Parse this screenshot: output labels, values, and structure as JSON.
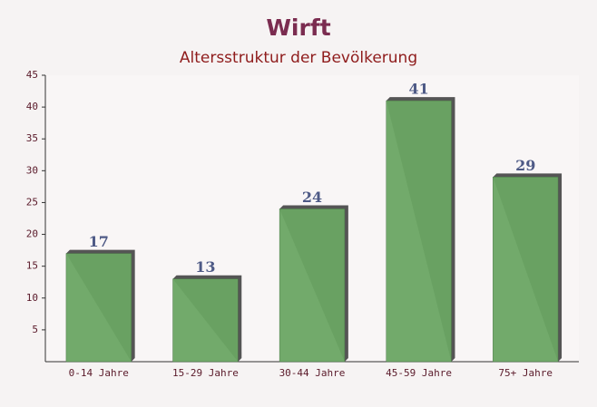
{
  "chart_data": {
    "type": "bar",
    "title": "Wirft",
    "subtitle": "Altersstruktur der Bevölkerung",
    "categories": [
      "0-14 Jahre",
      "15-29 Jahre",
      "30-44 Jahre",
      "45-59 Jahre",
      "75+ Jahre"
    ],
    "values": [
      17,
      13,
      24,
      41,
      29
    ],
    "color": "#6aa563",
    "ylim": [
      0,
      45
    ],
    "yticks": [
      5,
      10,
      15,
      20,
      25,
      30,
      35,
      40,
      45
    ],
    "grid": false
  }
}
